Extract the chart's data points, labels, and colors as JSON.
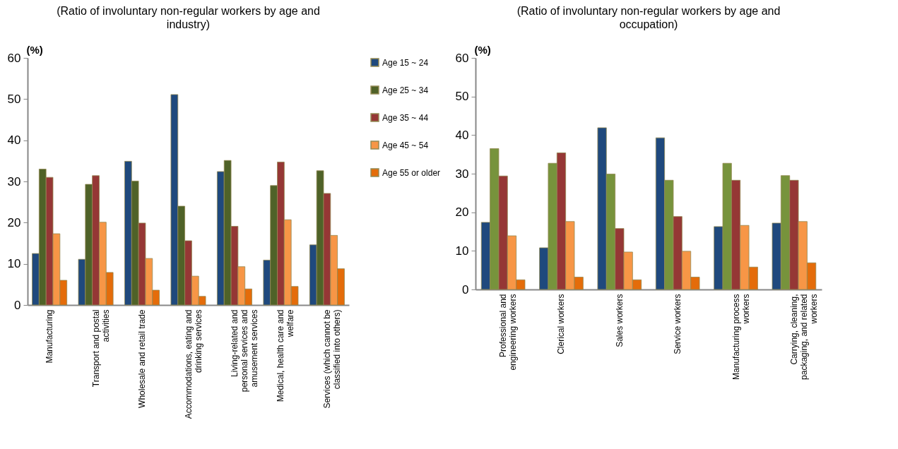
{
  "chart_data": [
    {
      "type": "bar",
      "title": "(Ratio of involuntary non-regular workers by age and industry)",
      "ylabel": "(%)",
      "categories": [
        "Manufacturing",
        "Transport and postal activities",
        "Wholesale and retail trade",
        "Accommodations, eating and drinking services",
        "Living-related and personal services and amusement services",
        "Medical, health care and welfare",
        "Services (which cannot be classified into others)"
      ],
      "series": [
        {
          "name": "Age 15 ~ 24",
          "color": "#1f497d",
          "values": [
            12.5,
            11.1,
            34.9,
            51.1,
            32.4,
            10.9,
            14.6
          ]
        },
        {
          "name": "Age 25 ~ 34",
          "color": "#4f6228",
          "values": [
            33.0,
            29.3,
            30.1,
            24.0,
            35.1,
            29.0,
            32.6
          ]
        },
        {
          "name": "Age 35 ~ 44",
          "color": "#953735",
          "values": [
            31.0,
            31.4,
            19.9,
            15.6,
            19.1,
            34.7,
            27.1
          ]
        },
        {
          "name": "Age 45 ~ 54",
          "color": "#f79646",
          "values": [
            17.3,
            20.1,
            11.3,
            7.0,
            9.3,
            20.7,
            16.9
          ]
        },
        {
          "name": "Age 55 or older",
          "color": "#e46c0a",
          "values": [
            6.0,
            7.9,
            3.6,
            2.1,
            3.9,
            4.5,
            8.8
          ]
        }
      ],
      "ylim": [
        0,
        60
      ],
      "yticks": [
        0,
        10,
        20,
        30,
        40,
        50,
        60
      ],
      "grid": false,
      "legend": "right"
    },
    {
      "type": "bar",
      "title": "(Ratio of involuntary non-regular workers by age and occupation)",
      "ylabel": "(%)",
      "categories": [
        "Professional and engineering workers",
        "Clerical workers",
        "Sales workers",
        "Service workers",
        "Manufacturing process workers",
        "Carrying, cleaning, packaging, and related workers"
      ],
      "series": [
        {
          "color": "#1f497d",
          "values": [
            17.4,
            10.8,
            41.9,
            39.3,
            16.3,
            17.2
          ]
        },
        {
          "color": "#77933c",
          "values": [
            36.5,
            32.7,
            29.9,
            28.3,
            32.7,
            29.5
          ]
        },
        {
          "color": "#953735",
          "values": [
            29.4,
            35.4,
            15.8,
            18.9,
            28.3,
            28.3
          ]
        },
        {
          "color": "#f79646",
          "values": [
            13.9,
            17.6,
            9.7,
            9.9,
            16.6,
            17.6
          ]
        },
        {
          "color": "#e46c0a",
          "values": [
            2.5,
            3.2,
            2.5,
            3.2,
            5.8,
            6.9
          ]
        }
      ],
      "ylim": [
        0,
        60
      ],
      "yticks": [
        0,
        10,
        20,
        30,
        40,
        50,
        60
      ],
      "grid": false,
      "legend": false
    }
  ]
}
